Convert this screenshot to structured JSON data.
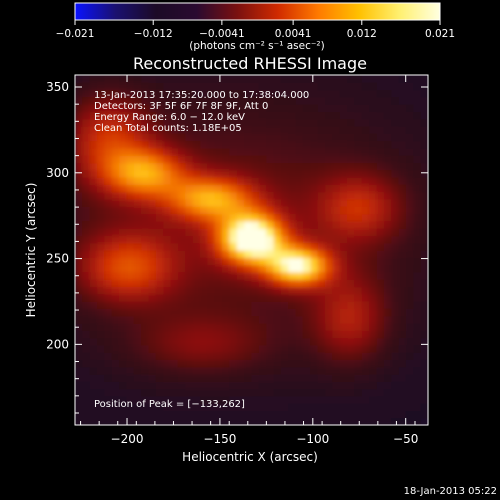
{
  "colorbar": {
    "ticks": [
      "−0.021",
      "−0.012",
      "−0.0041",
      "0.0041",
      "0.012",
      "0.021"
    ],
    "tick_values": [
      -0.021,
      -0.012,
      -0.0041,
      0.0041,
      0.012,
      0.021
    ],
    "range": [
      -0.021,
      0.021
    ],
    "units_label": "(photons cm⁻² s⁻¹ asec⁻²)",
    "colors": [
      "#0a12ff",
      "#1a1070",
      "#1c0a26",
      "#2a0a30",
      "#7a1010",
      "#d02a00",
      "#ff7a00",
      "#ffc000",
      "#fff070",
      "#ffffe0"
    ]
  },
  "chart_data": {
    "type": "heatmap",
    "title": "Reconstructed RHESSI Image",
    "xlabel": "Heliocentric X (arcsec)",
    "ylabel": "Heliocentric Y (arcsec)",
    "xlim": [
      -228,
      -38
    ],
    "ylim": [
      153,
      357
    ],
    "x_ticks": [
      -200,
      -150,
      -100,
      -50
    ],
    "y_ticks": [
      200,
      250,
      300,
      350
    ],
    "x_tick_labels": [
      "−200",
      "−150",
      "−100",
      "−50"
    ],
    "y_tick_labels": [
      "200",
      "250",
      "300",
      "350"
    ],
    "annotations": [
      "13-Jan-2013 17:35:20.000 to 17:38:04.000",
      "Detectors: 3F 5F 6F 7F 8F 9F, Att 0",
      "Energy Range: 6.0 − 12.0 keV",
      "Clean    Total counts: 1.18E+05"
    ],
    "peak_label": "Position of Peak = [−133,262]",
    "peak": [
      -133,
      262
    ],
    "sources": [
      {
        "x": -133,
        "y": 262,
        "amp": 1.0,
        "sx": 12,
        "sy": 10
      },
      {
        "x": -108,
        "y": 246,
        "amp": 0.82,
        "sx": 12,
        "sy": 8
      },
      {
        "x": -155,
        "y": 285,
        "amp": 0.55,
        "sx": 16,
        "sy": 9
      },
      {
        "x": -190,
        "y": 300,
        "amp": 0.52,
        "sx": 15,
        "sy": 10
      },
      {
        "x": -210,
        "y": 320,
        "amp": 0.35,
        "sx": 16,
        "sy": 18
      },
      {
        "x": -200,
        "y": 245,
        "amp": 0.38,
        "sx": 18,
        "sy": 14
      },
      {
        "x": -75,
        "y": 280,
        "amp": 0.3,
        "sx": 16,
        "sy": 14
      },
      {
        "x": -80,
        "y": 215,
        "amp": 0.28,
        "sx": 14,
        "sy": 18
      },
      {
        "x": -160,
        "y": 200,
        "amp": 0.18,
        "sx": 25,
        "sy": 12
      }
    ],
    "grid": false
  },
  "footer": {
    "date": "18-Jan-2013 05:22"
  }
}
